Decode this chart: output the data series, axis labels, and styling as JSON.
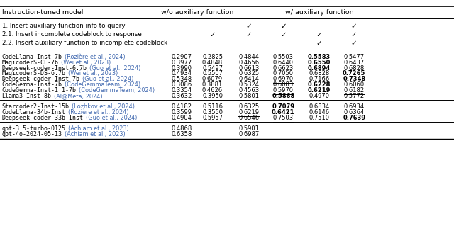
{
  "check_rows": [
    {
      "label": "1. Insert auxiliary function info to query",
      "checks": [
        false,
        false,
        true,
        true,
        false,
        true
      ]
    },
    {
      "label": "2.1. Insert incomplete codeblock to response",
      "checks": [
        false,
        true,
        true,
        true,
        true,
        true
      ]
    },
    {
      "label": "2.2. Insert auxiliary function to incomplete codeblock",
      "checks": [
        false,
        false,
        false,
        false,
        true,
        true
      ]
    }
  ],
  "model_groups": [
    {
      "models": [
        {
          "name": "CodeLlama-Inst-7b",
          "cite": "(Rozière et al., 2024)",
          "vals": [
            "0.2907",
            "0.2825",
            "0.4844",
            "0.5503",
            "0.5583",
            "0.5477"
          ],
          "bold": [
            4
          ],
          "underline": []
        },
        {
          "name": "MagicoderS-CL-7b",
          "cite": "(Wei et al., 2023)",
          "vals": [
            "0.3977",
            "0.4848",
            "0.4656",
            "0.6440",
            "0.6550",
            "0.6437"
          ],
          "bold": [
            4
          ],
          "underline": [
            3,
            5
          ]
        },
        {
          "name": "Deepseek-coder-Inst-6.7b",
          "cite": "(Guo et al., 2024)",
          "vals": [
            "0.3990",
            "0.5497",
            "0.6613",
            "0.6623",
            "0.6894",
            "0.6828"
          ],
          "bold": [
            4
          ],
          "underline": []
        },
        {
          "name": "MagicoderS-DS-6.7b",
          "cite": "(Wei et al., 2023)",
          "vals": [
            "0.4934",
            "0.5507",
            "0.6325",
            "0.7050",
            "0.6828",
            "0.7265"
          ],
          "bold": [
            5
          ],
          "underline": []
        },
        {
          "name": "Deepseek-coder-Inst-7b",
          "cite": "(Guo et al., 2024)",
          "vals": [
            "0.5348",
            "0.6079",
            "0.6414",
            "0.6970",
            "0.7166",
            "0.7348"
          ],
          "bold": [
            5
          ],
          "underline": [
            3
          ]
        },
        {
          "name": "CodeGemma-Inst-7b",
          "cite": "(CodeGemmaTeam, 2024)",
          "vals": [
            "0.3086",
            "0.3881",
            "0.5324",
            "0.6083",
            "0.6228",
            "0.6060"
          ],
          "bold": [
            4
          ],
          "underline": []
        },
        {
          "name": "CodeGemma-Inst-1.1-7b",
          "cite": "(CodeGemmaTeam, 2024)",
          "vals": [
            "0.3354",
            "0.4626",
            "0.4563",
            "0.5970",
            "0.6219",
            "0.6182"
          ],
          "bold": [
            4
          ],
          "underline": [
            3,
            5
          ]
        },
        {
          "name": "Llama3-Inst-8b",
          "cite": "(AI@Meta, 2024)",
          "vals": [
            "0.3632",
            "0.3950",
            "0.5801",
            "0.5868",
            "0.4970",
            "0.5772"
          ],
          "bold": [
            3
          ],
          "underline": [
            2
          ]
        }
      ]
    },
    {
      "models": [
        {
          "name": "Starcoder2-Inst-15b",
          "cite": "(Lozhkov et al., 2024)",
          "vals": [
            "0.4182",
            "0.5116",
            "0.6325",
            "0.7079",
            "0.6834",
            "0.6934"
          ],
          "bold": [
            3
          ],
          "underline": [
            4,
            5
          ]
        },
        {
          "name": "CodeLlama-34b-Inst",
          "cite": "(Rozière et al., 2024)",
          "vals": [
            "0.3599",
            "0.3550",
            "0.6219",
            "0.6421",
            "0.6146",
            "0.6364"
          ],
          "bold": [
            3
          ],
          "underline": [
            2
          ]
        },
        {
          "name": "Deepseek-coder-33b-Inst",
          "cite": "(Guo et al., 2024)",
          "vals": [
            "0.4904",
            "0.5957",
            "0.6546",
            "0.7503",
            "0.7510",
            "0.7639"
          ],
          "bold": [
            5
          ],
          "underline": [
            3,
            4
          ]
        }
      ]
    },
    {
      "models": [
        {
          "name": "gpt-3.5-turbo-0125",
          "cite": "(Achiam et al., 2023)",
          "vals": [
            "0.4868",
            "",
            "0.5901",
            "",
            "",
            ""
          ],
          "bold": [],
          "underline": []
        },
        {
          "name": "gpt-4o-2024-05-13",
          "cite": "(Achiam et al., 2023)",
          "vals": [
            "0.6358",
            "",
            "0.6987",
            "",
            "",
            ""
          ],
          "bold": [],
          "underline": []
        }
      ]
    }
  ],
  "cite_color": "#4169B0",
  "header_label": "Instruction-tuned model",
  "wo_label": "w/o auxiliary function",
  "w_label": "w/ auxiliary function",
  "figsize": [
    6.4,
    3.43
  ],
  "dpi": 100
}
